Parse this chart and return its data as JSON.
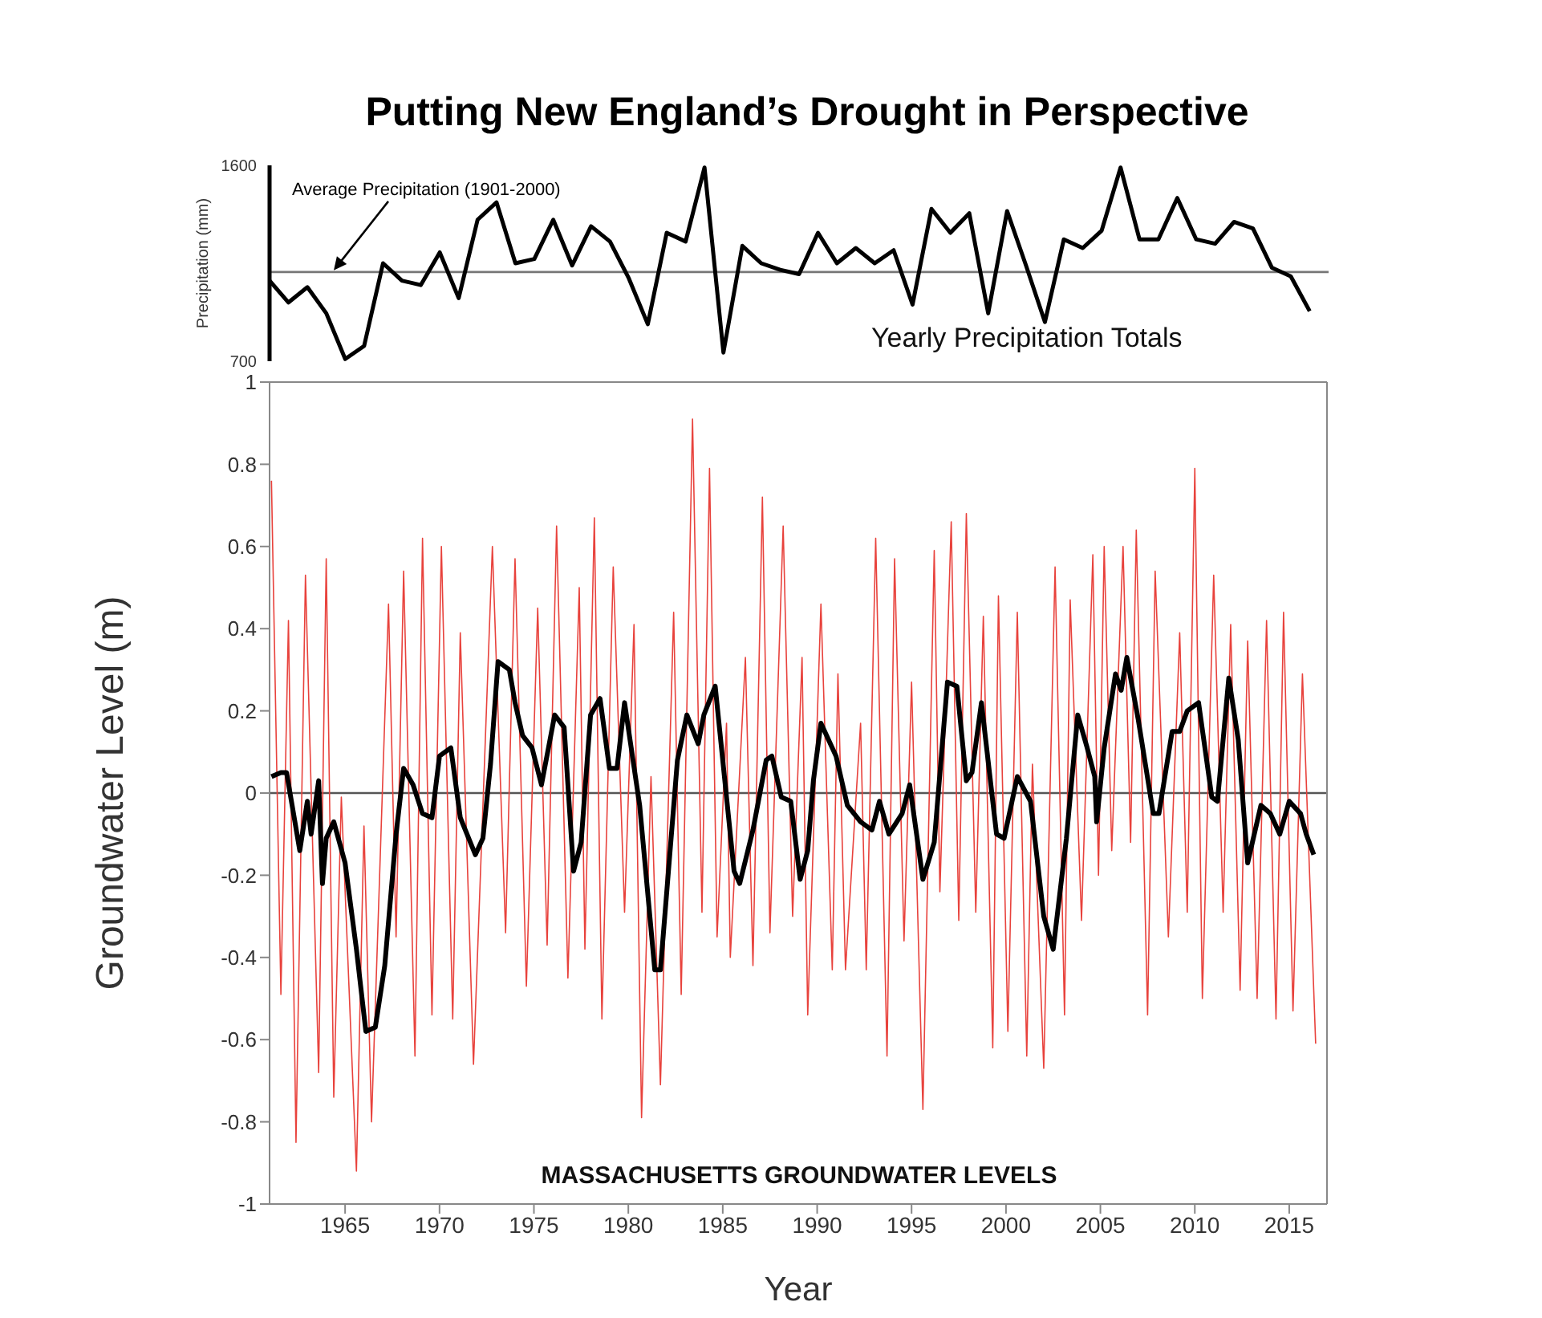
{
  "chart_data": [
    {
      "type": "line",
      "title": "Putting New England’s Drought in Perspective",
      "ylabel": "Precipitation (mm)",
      "x": [
        1961,
        1962,
        1963,
        1964,
        1965,
        1966,
        1967,
        1968,
        1969,
        1970,
        1971,
        1972,
        1973,
        1974,
        1975,
        1976,
        1977,
        1978,
        1979,
        1980,
        1981,
        1982,
        1983,
        1984,
        1985,
        1986,
        1987,
        1988,
        1989,
        1990,
        1991,
        1992,
        1993,
        1994,
        1995,
        1996,
        1997,
        1998,
        1999,
        2000,
        2001,
        2002,
        2003,
        2004,
        2005,
        2006,
        2007,
        2008,
        2009,
        2010,
        2011,
        2012,
        2013,
        2014,
        2015,
        2016
      ],
      "series": [
        {
          "color": "#000000",
          "values": [
            1070,
            970,
            1040,
            920,
            710,
            770,
            1150,
            1070,
            1050,
            1200,
            990,
            1350,
            1430,
            1150,
            1170,
            1350,
            1140,
            1320,
            1250,
            1080,
            870,
            1290,
            1250,
            1590,
            740,
            1230,
            1150,
            1120,
            1100,
            1290,
            1150,
            1220,
            1150,
            1210,
            960,
            1400,
            1290,
            1380,
            920,
            1390,
            1140,
            880,
            1260,
            1220,
            1300,
            1590,
            1260,
            1260,
            1450,
            1260,
            1240,
            1340,
            1310,
            1130,
            1090,
            930
          ]
        }
      ],
      "xlim": [
        1961,
        2017
      ],
      "ylim": [
        700,
        1600
      ],
      "yticks": [
        700,
        1600
      ],
      "tick_labels": "y",
      "marker": "none",
      "ref_lines": [
        {
          "axis": "y",
          "value": 1110,
          "label": "Average Precipitation (1901-2000)",
          "color": "#777777"
        }
      ],
      "annotations": [
        "Yearly Precipitation Totals"
      ]
    },
    {
      "type": "line",
      "xlabel": "Year",
      "ylabel": "Groundwater Level (m)",
      "series": [
        {
          "color": "#e8423c",
          "x": [
            1961.1,
            1961.6,
            1962.0,
            1962.4,
            1962.9,
            1963.6,
            1964.0,
            1964.4,
            1964.8,
            1965.6,
            1966.0,
            1966.4,
            1967.3,
            1967.7,
            1968.1,
            1968.7,
            1969.1,
            1969.6,
            1970.1,
            1970.7,
            1971.1,
            1971.8,
            1972.8,
            1973.5,
            1974.0,
            1974.6,
            1975.2,
            1975.7,
            1976.2,
            1976.8,
            1977.4,
            1977.7,
            1978.2,
            1978.6,
            1979.2,
            1979.8,
            1980.3,
            1980.7,
            1981.2,
            1981.7,
            1982.4,
            1982.8,
            1983.4,
            1983.9,
            1984.3,
            1984.7,
            1985.2,
            1985.4,
            1986.2,
            1986.6,
            1987.1,
            1987.5,
            1988.2,
            1988.7,
            1989.2,
            1989.5,
            1990.2,
            1990.8,
            1991.1,
            1991.5,
            1992.3,
            1992.6,
            1993.1,
            1993.7,
            1994.1,
            1994.6,
            1995.0,
            1995.6,
            1996.2,
            1996.5,
            1997.1,
            1997.5,
            1997.9,
            1998.4,
            1998.8,
            1999.3,
            1999.6,
            2000.1,
            2000.6,
            2001.1,
            2001.4,
            2002.0,
            2002.6,
            2003.1,
            2003.4,
            2004.0,
            2004.6,
            2004.9,
            2005.2,
            2005.6,
            2006.2,
            2006.6,
            2006.9,
            2007.5,
            2007.9,
            2008.6,
            2009.2,
            2009.6,
            2010.0,
            2010.4,
            2011.0,
            2011.5,
            2011.9,
            2012.4,
            2012.8,
            2013.3,
            2013.8,
            2014.3,
            2014.7,
            2015.2,
            2015.7,
            2016.4
          ],
          "values": [
            0.76,
            -0.49,
            0.42,
            -0.85,
            0.53,
            -0.68,
            0.57,
            -0.74,
            -0.01,
            -0.92,
            -0.08,
            -0.8,
            0.46,
            -0.35,
            0.54,
            -0.64,
            0.62,
            -0.54,
            0.6,
            -0.55,
            0.39,
            -0.66,
            0.6,
            -0.34,
            0.57,
            -0.47,
            0.45,
            -0.37,
            0.65,
            -0.45,
            0.5,
            -0.38,
            0.67,
            -0.55,
            0.55,
            -0.29,
            0.41,
            -0.79,
            0.04,
            -0.71,
            0.44,
            -0.49,
            0.91,
            -0.29,
            0.79,
            -0.35,
            0.17,
            -0.4,
            0.33,
            -0.42,
            0.72,
            -0.34,
            0.65,
            -0.3,
            0.33,
            -0.54,
            0.46,
            -0.43,
            0.29,
            -0.43,
            0.17,
            -0.43,
            0.62,
            -0.64,
            0.57,
            -0.36,
            0.27,
            -0.77,
            0.59,
            -0.24,
            0.66,
            -0.31,
            0.68,
            -0.29,
            0.43,
            -0.62,
            0.48,
            -0.58,
            0.44,
            -0.64,
            0.07,
            -0.67,
            0.55,
            -0.54,
            0.47,
            -0.31,
            0.58,
            -0.2,
            0.6,
            -0.14,
            0.6,
            -0.12,
            0.64,
            -0.54,
            0.54,
            -0.35,
            0.39,
            -0.29,
            0.79,
            -0.5,
            0.53,
            -0.29,
            0.41,
            -0.48,
            0.37,
            -0.5,
            0.42,
            -0.55,
            0.44,
            -0.53,
            0.29,
            -0.61
          ]
        },
        {
          "color": "#000000",
          "x": [
            1961.1,
            1961.6,
            1961.9,
            1962.6,
            1963.0,
            1963.2,
            1963.6,
            1963.8,
            1964.0,
            1964.4,
            1965.0,
            1965.6,
            1966.1,
            1966.6,
            1967.1,
            1967.7,
            1968.1,
            1968.6,
            1969.1,
            1969.6,
            1970.0,
            1970.6,
            1971.1,
            1971.9,
            1972.3,
            1972.7,
            1973.1,
            1973.7,
            1974.0,
            1974.4,
            1974.9,
            1975.4,
            1976.1,
            1976.6,
            1977.1,
            1977.5,
            1978.0,
            1978.5,
            1979.0,
            1979.4,
            1979.8,
            1980.6,
            1981.4,
            1981.7,
            1982.6,
            1983.1,
            1983.7,
            1984.0,
            1984.6,
            1985.6,
            1985.9,
            1986.6,
            1987.3,
            1987.6,
            1988.1,
            1988.6,
            1989.1,
            1989.5,
            1989.8,
            1990.2,
            1991.0,
            1991.6,
            1992.3,
            1992.9,
            1993.3,
            1993.8,
            1994.5,
            1994.9,
            1995.6,
            1996.2,
            1996.9,
            1997.4,
            1997.9,
            1998.2,
            1998.7,
            1999.5,
            1999.9,
            2000.6,
            2001.3,
            2002.0,
            2002.5,
            2003.2,
            2003.8,
            2004.3,
            2004.7,
            2004.8,
            2005.2,
            2005.8,
            2006.1,
            2006.4,
            2007.0,
            2007.8,
            2008.1,
            2008.8,
            2009.2,
            2009.6,
            2010.2,
            2010.9,
            2011.2,
            2011.8,
            2012.3,
            2012.8,
            2013.5,
            2014.0,
            2014.5,
            2015.0,
            2015.6,
            2015.9,
            2016.3
          ],
          "values": [
            0.04,
            0.05,
            0.05,
            -0.14,
            -0.02,
            -0.1,
            0.03,
            -0.22,
            -0.11,
            -0.07,
            -0.17,
            -0.38,
            -0.58,
            -0.57,
            -0.42,
            -0.1,
            0.06,
            0.02,
            -0.05,
            -0.06,
            0.09,
            0.11,
            -0.06,
            -0.15,
            -0.11,
            0.07,
            0.32,
            0.3,
            0.22,
            0.14,
            0.11,
            0.02,
            0.19,
            0.16,
            -0.19,
            -0.12,
            0.19,
            0.23,
            0.06,
            0.06,
            0.22,
            -0.03,
            -0.43,
            -0.43,
            0.08,
            0.19,
            0.12,
            0.19,
            0.26,
            -0.19,
            -0.22,
            -0.09,
            0.08,
            0.09,
            -0.01,
            -0.02,
            -0.21,
            -0.14,
            0.03,
            0.17,
            0.09,
            -0.03,
            -0.07,
            -0.09,
            -0.02,
            -0.1,
            -0.05,
            0.02,
            -0.21,
            -0.12,
            0.27,
            0.26,
            0.03,
            0.05,
            0.22,
            -0.1,
            -0.11,
            0.04,
            -0.02,
            -0.3,
            -0.38,
            -0.11,
            0.19,
            0.11,
            0.04,
            -0.07,
            0.11,
            0.29,
            0.25,
            0.33,
            0.18,
            -0.05,
            -0.05,
            0.15,
            0.15,
            0.2,
            0.22,
            -0.01,
            -0.02,
            0.28,
            0.13,
            -0.17,
            -0.03,
            -0.05,
            -0.1,
            -0.02,
            -0.05,
            -0.1,
            -0.15
          ]
        }
      ],
      "xlim": [
        1961,
        2017
      ],
      "xticks": [
        1965,
        1970,
        1975,
        1980,
        1985,
        1990,
        1995,
        2000,
        2005,
        2010,
        2015
      ],
      "ylim": [
        -1,
        1
      ],
      "yticks": [
        -1,
        -0.8,
        -0.6,
        -0.4,
        -0.2,
        0,
        0.2,
        0.4,
        0.6,
        0.8,
        1
      ],
      "marker": "none",
      "ref_lines": [
        {
          "axis": "y",
          "value": 0,
          "color": "#555555"
        }
      ],
      "annotations": [
        "MASSACHUSETTS GROUNDWATER LEVELS"
      ]
    }
  ]
}
